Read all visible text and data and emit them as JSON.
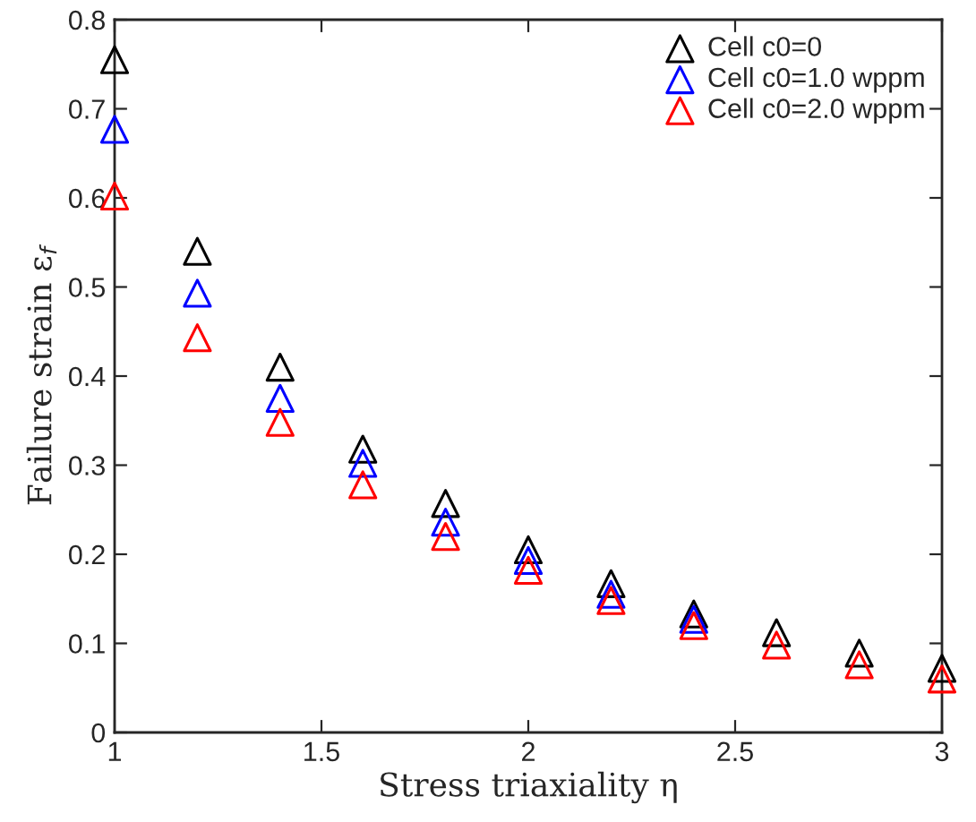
{
  "chart_data": {
    "type": "scatter",
    "xlabel": "Stress triaxiality η",
    "ylabel": "Failure strain ε$_{f}$",
    "x": [
      1,
      1.2,
      1.4,
      1.6,
      1.8,
      2,
      2.2,
      2.4,
      2.6,
      2.8,
      3
    ],
    "series": [
      {
        "name": "Cell c0=0",
        "color": "#000000",
        "values": [
          0.755,
          0.54,
          0.41,
          0.318,
          0.257,
          0.205,
          0.167,
          0.133,
          0.112,
          0.089,
          0.072
        ]
      },
      {
        "name": "Cell c0=1.0 wppm",
        "color": "#0000ff",
        "values": [
          0.677,
          0.493,
          0.375,
          0.302,
          0.236,
          0.193,
          0.155,
          0.127,
          null,
          null,
          null
        ]
      },
      {
        "name": "Cell c0=2.0 wppm",
        "color": "#ff0000",
        "values": [
          0.602,
          0.443,
          0.348,
          0.278,
          0.22,
          0.182,
          0.148,
          0.12,
          0.098,
          0.076,
          0.06
        ]
      }
    ],
    "xlim": [
      1,
      3
    ],
    "ylim": [
      0,
      0.8
    ],
    "xticks": [
      1,
      1.5,
      2,
      2.5,
      3
    ],
    "yticks": [
      0,
      0.1,
      0.2,
      0.3,
      0.4,
      0.5,
      0.6,
      0.7,
      0.8
    ],
    "marker": "triangle",
    "legend": "top right",
    "grid": false
  }
}
